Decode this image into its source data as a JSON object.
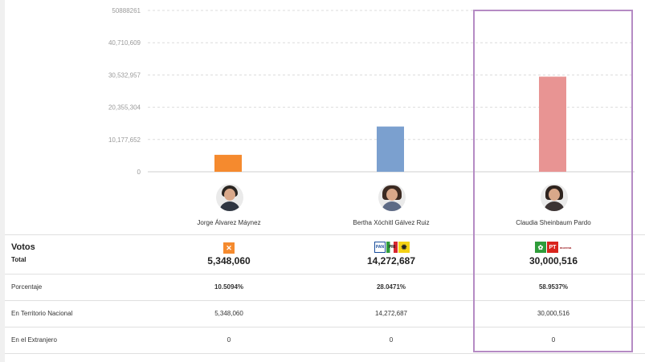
{
  "chart_data": {
    "type": "bar",
    "categories": [
      "Jorge Álvarez Máynez",
      "Bertha Xóchitl Gálvez Ruiz",
      "Claudia Sheinbaum Pardo"
    ],
    "values": [
      5348060,
      14272687,
      30000516
    ],
    "colors": [
      "#f58a2e",
      "#7ba0cf",
      "#e89493"
    ],
    "ylim": [
      0,
      50888261
    ],
    "yticks": [
      0,
      10177652,
      20355304,
      30532957,
      40710609,
      50888261
    ],
    "ytick_labels": [
      "0",
      "10,177,652",
      "20,355,304",
      "30,532,957",
      "40,710,609",
      "50888261"
    ],
    "grid": true
  },
  "candidates": [
    {
      "name": "Jorge Álvarez Máynez",
      "total": "5,348,060",
      "porcentaje": "10.5094%",
      "territorio": "5,348,060",
      "extranjero": "0",
      "parties": [
        "mc"
      ]
    },
    {
      "name": "Bertha Xóchitl Gálvez Ruiz",
      "total": "14,272,687",
      "porcentaje": "28.0471%",
      "territorio": "14,272,687",
      "extranjero": "0",
      "parties": [
        "pan",
        "pri",
        "prd"
      ]
    },
    {
      "name": "Claudia Sheinbaum Pardo",
      "total": "30,000,516",
      "porcentaje": "58.9537%",
      "territorio": "30,000,516",
      "extranjero": "0",
      "parties": [
        "pvem",
        "pt",
        "morena"
      ]
    }
  ],
  "table": {
    "votos_title": "Votos",
    "total_label": "Total",
    "porcentaje_label": "Porcentaje",
    "territorio_label": "En Territorio Nacional",
    "extranjero_label": "En el Extranjero"
  },
  "logo_text": {
    "pan": "PAN",
    "pri": "PRI",
    "pt": "PT",
    "morena": "morena"
  },
  "colors": {
    "highlight": "#b58bc4",
    "mc": "#f58a2e",
    "pan": "#1b4f9c",
    "pri": "#d7272f",
    "prd": "#f5d215",
    "pvem": "#2e9c3a",
    "pt": "#d9241c",
    "morena": "#a0262b"
  }
}
